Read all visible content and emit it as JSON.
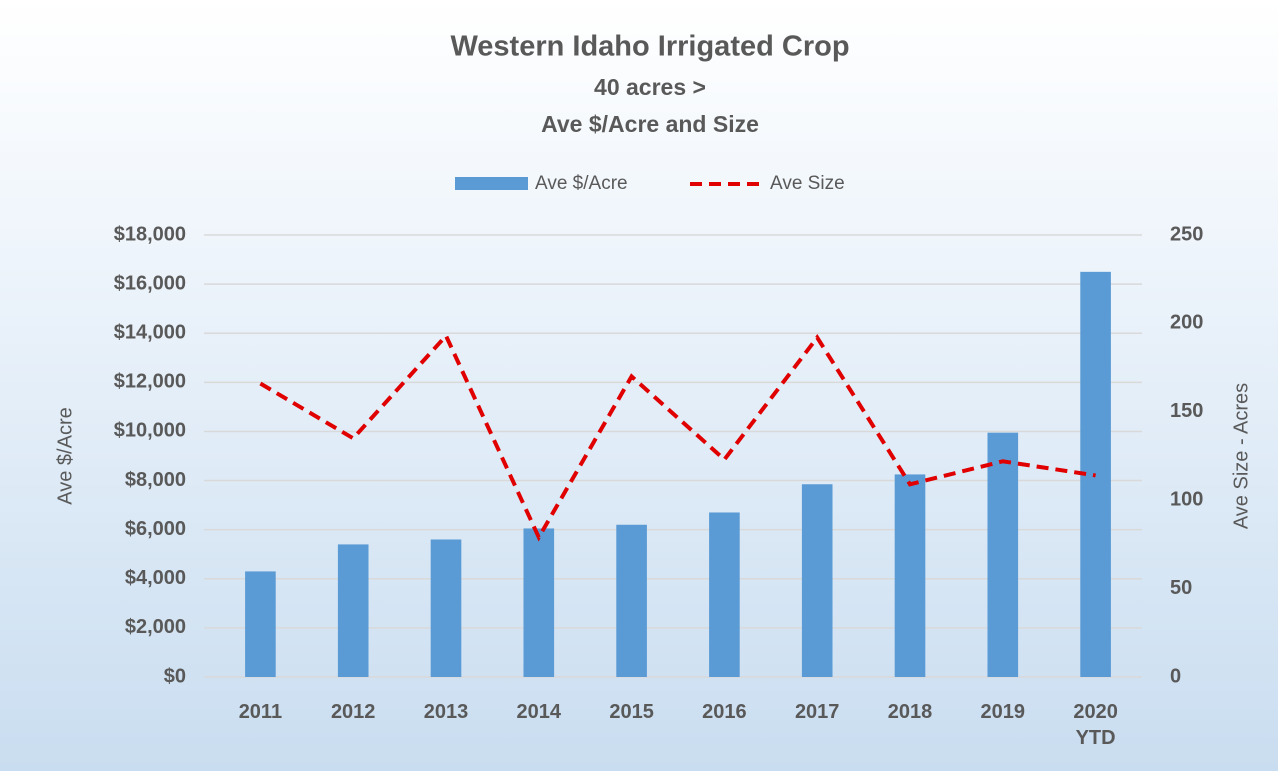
{
  "chart_data": {
    "type": "bar_line",
    "title": "Western Idaho Irrigated Crop",
    "subtitle": [
      "40 acres >",
      "Ave $/Acre and Size"
    ],
    "y_label": "Ave $/Acre",
    "y2_label": "Ave Size - Acres",
    "categories": [
      "2011",
      "2012",
      "2013",
      "2014",
      "2015",
      "2016",
      "2017",
      "2018",
      "2019",
      "2020\nYTD"
    ],
    "series": [
      {
        "name": "Ave $/Acre",
        "type": "bar",
        "color": "#5b9bd5",
        "values": [
          4300,
          5400,
          5600,
          6050,
          6200,
          6700,
          7850,
          8250,
          9950,
          16500
        ]
      },
      {
        "name": "Ave Size",
        "type": "line",
        "color": "#e00000",
        "dashed": true,
        "axis": "y2",
        "values": [
          166,
          135,
          193,
          79,
          170,
          123,
          192,
          109,
          122,
          114
        ]
      }
    ],
    "ylim": [
      0,
      18000
    ],
    "yticks": [
      {
        "value": 0,
        "label": "$0"
      },
      {
        "value": 2000,
        "label": "$2,000"
      },
      {
        "value": 4000,
        "label": "$4,000"
      },
      {
        "value": 6000,
        "label": "$6,000"
      },
      {
        "value": 8000,
        "label": "$8,000"
      },
      {
        "value": 10000,
        "label": "$10,000"
      },
      {
        "value": 12000,
        "label": "$12,000"
      },
      {
        "value": 14000,
        "label": "$14,000"
      },
      {
        "value": 16000,
        "label": "$16,000"
      },
      {
        "value": 18000,
        "label": "$18,000"
      }
    ],
    "y2lim": [
      0,
      250
    ],
    "y2ticks": [
      0,
      50,
      100,
      150,
      200,
      250
    ],
    "grid": true,
    "legend": "top"
  }
}
